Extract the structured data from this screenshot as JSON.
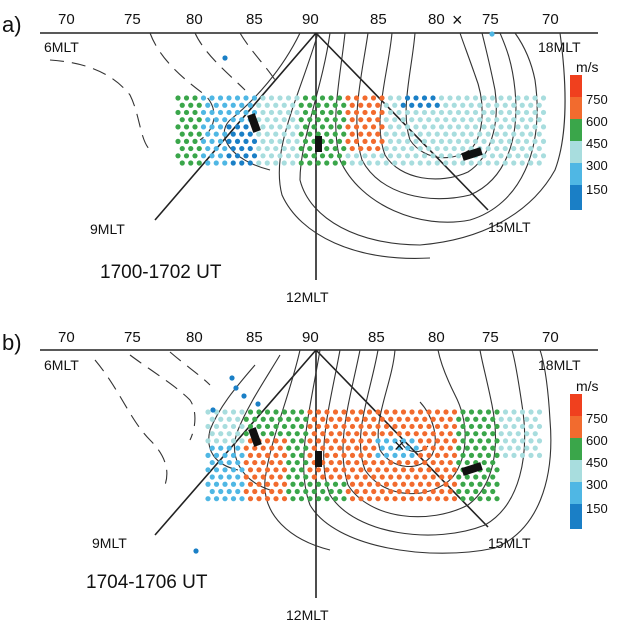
{
  "colors": {
    "c150": "#1a7fc6",
    "c300": "#4fb7e4",
    "c450": "#a8ddde",
    "c600": "#3aa64a",
    "c750": "#f26b2e",
    "c900": "#f0401e",
    "line": "#222222"
  },
  "panels": [
    {
      "letter": "a)",
      "lat_labels": [
        "70",
        "75",
        "80",
        "85",
        "90",
        "85",
        "80",
        "75",
        "70"
      ],
      "mlt_labels": {
        "left": "6MLT",
        "right": "18MLT",
        "lower_left": "9MLT",
        "lower_right": "15MLT",
        "bottom": "12MLT"
      },
      "time_label": "1700-1702 UT",
      "marker": "×",
      "legend": {
        "unit": "m/s",
        "ticks": [
          "750",
          "600",
          "450",
          "300",
          "150"
        ]
      }
    },
    {
      "letter": "b)",
      "lat_labels": [
        "70",
        "75",
        "80",
        "85",
        "90",
        "85",
        "80",
        "75",
        "70"
      ],
      "mlt_labels": {
        "left": "6MLT",
        "right": "18MLT",
        "lower_left": "9MLT",
        "lower_right": "15MLT",
        "bottom": "12MLT"
      },
      "time_label": "1704-1706 UT",
      "marker": "×",
      "legend": {
        "unit": "m/s",
        "ticks": [
          "750",
          "600",
          "450",
          "300",
          "150"
        ]
      }
    }
  ]
}
